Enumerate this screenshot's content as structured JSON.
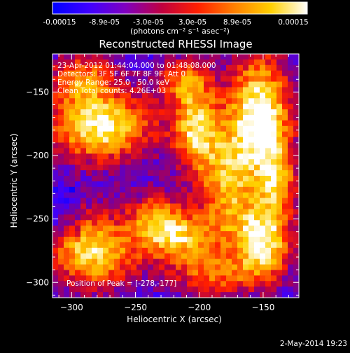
{
  "colorbar": {
    "tick_labels": [
      "-0.00015",
      "-8.9e-05",
      "-3.0e-05",
      "3.0e-05",
      "8.9e-05",
      "0.00015"
    ],
    "units": "(photons cm⁻² s⁻¹ asec⁻²)",
    "range": [
      -0.00015,
      0.00015
    ],
    "stops": [
      "#0000ff",
      "#3f00ff",
      "#8000c0",
      "#c00040",
      "#ff2000",
      "#ff8000",
      "#ffd000",
      "#ffffff"
    ]
  },
  "overlay": {
    "lines": [
      "23-Apr-2012 01:44:04.000 to 01:48:08.000",
      "Detectors: 3F 5F 6F 7F 8F 9F, Att 0",
      "Energy Range: 25.0 - 50.0 keV",
      "Clean     Total counts: 4.26E+03"
    ],
    "peak_text": "Position of Peak = [-278,-177]"
  },
  "footer": {
    "timestamp": "2-May-2014 19:23"
  },
  "chart_data": {
    "type": "heatmap",
    "title": "Reconstructed RHESSI Image",
    "xlabel": "Heliocentric X (arcsec)",
    "ylabel": "Heliocentric Y (arcsec)",
    "xlim": [
      -315,
      -122
    ],
    "ylim": [
      -312,
      -120
    ],
    "xticks": [
      -300,
      -250,
      -200,
      -150
    ],
    "yticks": [
      -150,
      -200,
      -250,
      -300
    ],
    "xtick_labels": [
      "−300",
      "−250",
      "−200",
      "−150"
    ],
    "ytick_labels": [
      "−150",
      "−200",
      "−250",
      "−300"
    ],
    "peak": [
      -278,
      -177
    ],
    "blobs": [
      {
        "x": -153,
        "y": -172,
        "sx": 18,
        "sy": 36,
        "amp": 1.15
      },
      {
        "x": -150,
        "y": -268,
        "sx": 16,
        "sy": 22,
        "amp": 1.0
      },
      {
        "x": -203,
        "y": -178,
        "sx": 13,
        "sy": 26,
        "amp": 0.85
      },
      {
        "x": -278,
        "y": -177,
        "sx": 30,
        "sy": 20,
        "amp": 1.0
      },
      {
        "x": -283,
        "y": -275,
        "sx": 25,
        "sy": 22,
        "amp": 0.9
      },
      {
        "x": -215,
        "y": -265,
        "sx": 20,
        "sy": 15,
        "amp": 0.8
      },
      {
        "x": -180,
        "y": -225,
        "sx": 14,
        "sy": 30,
        "amp": 0.65
      },
      {
        "x": -235,
        "y": -248,
        "sx": 14,
        "sy": 14,
        "amp": 0.55
      },
      {
        "x": -292,
        "y": -138,
        "sx": 18,
        "sy": 14,
        "amp": 0.6
      },
      {
        "x": -190,
        "y": -295,
        "sx": 22,
        "sy": 12,
        "amp": 0.55
      },
      {
        "x": -215,
        "y": -140,
        "sx": 15,
        "sy": 12,
        "amp": 0.5
      },
      {
        "x": -138,
        "y": -220,
        "sx": 10,
        "sy": 18,
        "amp": 0.55
      }
    ],
    "grid": false
  }
}
